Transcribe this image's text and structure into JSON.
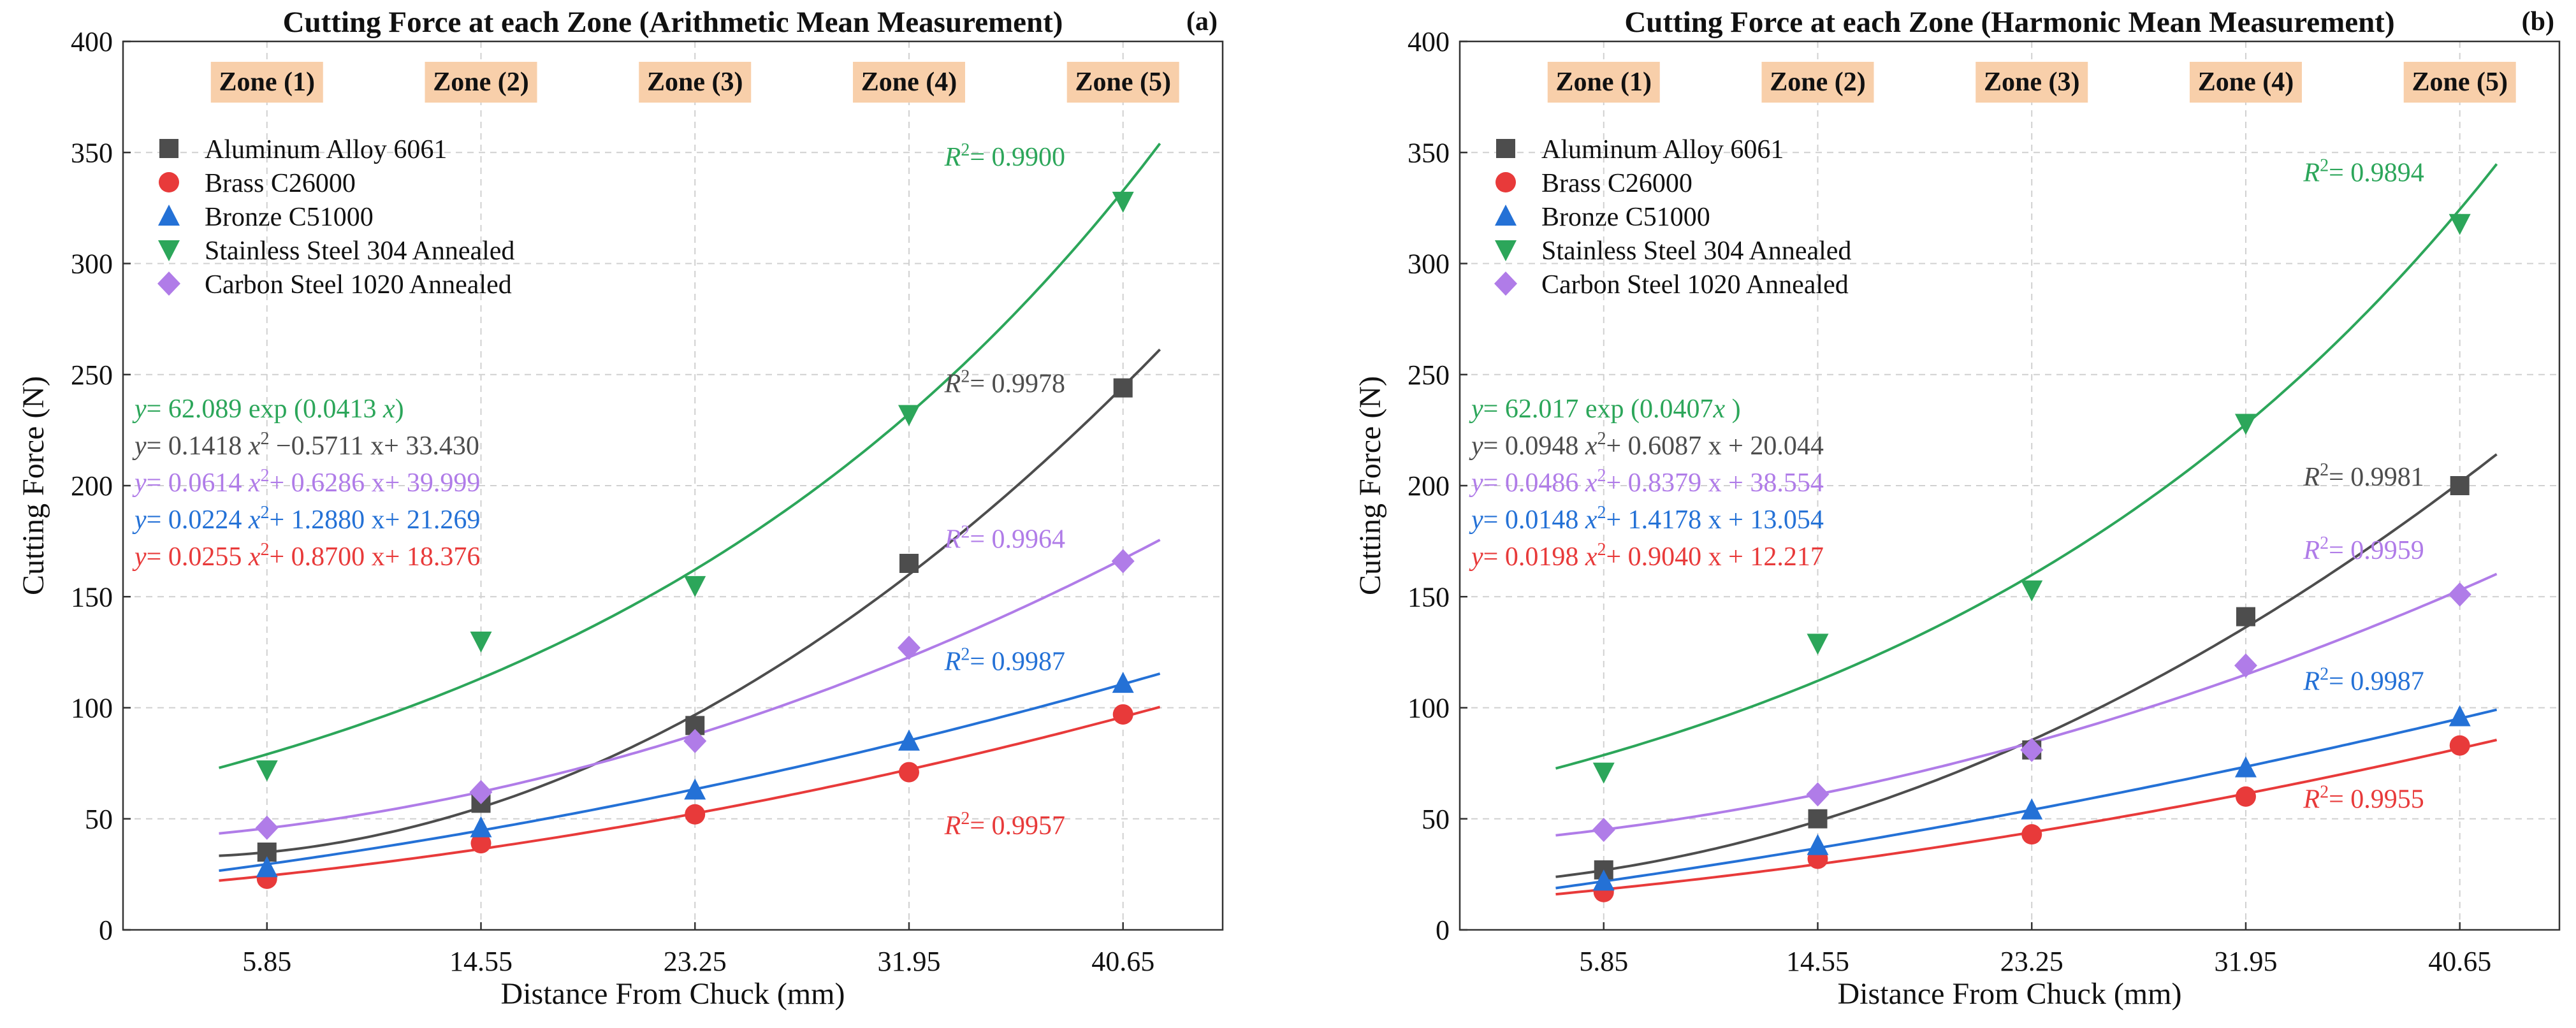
{
  "chart_data": [
    {
      "type": "scatter",
      "panel_label": "(a)",
      "title": "Cutting Force at each Zone (Arithmetic Mean Measurement)",
      "xlabel": "Distance From Chuck (mm)",
      "ylabel": "Cutting Force (N)",
      "x": [
        5.85,
        14.55,
        23.25,
        31.95,
        40.65
      ],
      "xticks": [
        "5.85",
        "14.55",
        "23.25",
        "31.95",
        "40.65"
      ],
      "xlim": [
        0,
        44.7
      ],
      "ylim": [
        0,
        400
      ],
      "yticks": [
        0,
        50,
        100,
        150,
        200,
        250,
        300,
        350,
        400
      ],
      "grid": true,
      "legend_position": "top-left",
      "zones": [
        "Zone (1)",
        "Zone (2)",
        "Zone (3)",
        "Zone (4)",
        "Zone (5)"
      ],
      "series": [
        {
          "name": "Aluminum Alloy 6061",
          "color": "#4d4d4d",
          "marker": "square",
          "values": [
            35,
            57,
            92,
            165,
            244
          ],
          "fit": {
            "kind": "poly2",
            "a": 0.1418,
            "b": -0.5711,
            "c": 33.43
          },
          "equation": {
            "prefix": "= 0.1418 ",
            "x2": "x",
            "sup": "2",
            "rest": " −0.5711  x+ 33.430"
          },
          "r2": "= 0.9978"
        },
        {
          "name": "Brass C26000",
          "color": "#e83a3a",
          "marker": "circle",
          "values": [
            23,
            39,
            52,
            71,
            97
          ],
          "fit": {
            "kind": "poly2",
            "a": 0.0255,
            "b": 0.87,
            "c": 18.376
          },
          "equation": {
            "prefix": "= 0.0255 ",
            "x2": "x",
            "sup": "2",
            "rest": "+ 0.8700  x+ 18.376"
          },
          "r2": "= 0.9957"
        },
        {
          "name": "Bronze C51000",
          "color": "#2471d6",
          "marker": "triangle-up",
          "values": [
            28,
            46,
            63,
            85,
            111
          ],
          "fit": {
            "kind": "poly2",
            "a": 0.0224,
            "b": 1.288,
            "c": 21.269
          },
          "equation": {
            "prefix": "= 0.0224 ",
            "x2": "x",
            "sup": "2",
            "rest": "+ 1.2880  x+ 21.269"
          },
          "r2": "= 0.9987"
        },
        {
          "name": "Stainless Steel 304 Annealed",
          "color": "#2ca65a",
          "marker": "triangle-down",
          "values": [
            72,
            130,
            155,
            232,
            328
          ],
          "fit": {
            "kind": "exp",
            "a": 62.089,
            "b": 0.0413
          },
          "equation": {
            "prefix": "= 62.089 exp (0.0413 ",
            "x2": "x",
            "sup": "",
            "rest": ")"
          },
          "r2": "= 0.9900"
        },
        {
          "name": "Carbon Steel 1020 Annealed",
          "color": "#b07ce8",
          "marker": "diamond",
          "values": [
            46,
            62,
            85,
            127,
            166
          ],
          "fit": {
            "kind": "poly2",
            "a": 0.0614,
            "b": 0.6286,
            "c": 39.999
          },
          "equation": {
            "prefix": "= 0.0614  ",
            "x2": "x",
            "sup": "2",
            "rest": "+ 0.6286  x+ 39.999"
          },
          "r2": "= 0.9964"
        }
      ]
    },
    {
      "type": "scatter",
      "panel_label": "(b)",
      "title": "Cutting Force at each Zone (Harmonic Mean Measurement)",
      "xlabel": "Distance From Chuck (mm)",
      "ylabel": "Cutting Force (N)",
      "x": [
        5.85,
        14.55,
        23.25,
        31.95,
        40.65
      ],
      "xticks": [
        "5.85",
        "14.55",
        "23.25",
        "31.95",
        "40.65"
      ],
      "xlim": [
        0,
        44.7
      ],
      "ylim": [
        0,
        400
      ],
      "yticks": [
        0,
        50,
        100,
        150,
        200,
        250,
        300,
        350,
        400
      ],
      "grid": true,
      "legend_position": "top-left",
      "zones": [
        "Zone (1)",
        "Zone (2)",
        "Zone (3)",
        "Zone (4)",
        "Zone (5)"
      ],
      "series": [
        {
          "name": "Aluminum Alloy 6061",
          "color": "#4d4d4d",
          "marker": "square",
          "values": [
            27,
            50,
            81,
            141,
            200
          ],
          "fit": {
            "kind": "poly2",
            "a": 0.0948,
            "b": 0.6087,
            "c": 20.044
          },
          "equation": {
            "prefix": "= 0.0948  ",
            "x2": "x",
            "sup": "2",
            "rest": "+ 0.6087 x + 20.044"
          },
          "r2": "= 0.9981"
        },
        {
          "name": "Brass C26000",
          "color": "#e83a3a",
          "marker": "circle",
          "values": [
            17,
            32,
            43,
            60,
            83
          ],
          "fit": {
            "kind": "poly2",
            "a": 0.0198,
            "b": 0.904,
            "c": 12.217
          },
          "equation": {
            "prefix": "= 0.0198 ",
            "x2": "x",
            "sup": "2",
            "rest": "+ 0.9040 x + 12.217"
          },
          "r2": "= 0.9955"
        },
        {
          "name": "Bronze C51000",
          "color": "#2471d6",
          "marker": "triangle-up",
          "values": [
            22,
            38,
            54,
            73,
            96
          ],
          "fit": {
            "kind": "poly2",
            "a": 0.0148,
            "b": 1.4178,
            "c": 13.054
          },
          "equation": {
            "prefix": "= 0.0148 ",
            "x2": "x",
            "sup": "2",
            "rest": "+ 1.4178 x + 13.054"
          },
          "r2": "= 0.9987"
        },
        {
          "name": "Stainless Steel 304 Annealed",
          "color": "#2ca65a",
          "marker": "triangle-down",
          "values": [
            71,
            129,
            153,
            228,
            318
          ],
          "fit": {
            "kind": "exp",
            "a": 62.017,
            "b": 0.0407
          },
          "equation": {
            "prefix": "= 62.017 exp (0.0407",
            "x2": "x",
            "sup": "",
            "rest": " )"
          },
          "r2": "= 0.9894"
        },
        {
          "name": "Carbon Steel 1020 Annealed",
          "color": "#b07ce8",
          "marker": "diamond",
          "values": [
            45,
            61,
            81,
            119,
            151
          ],
          "fit": {
            "kind": "poly2",
            "a": 0.0486,
            "b": 0.8379,
            "c": 38.554
          },
          "equation": {
            "prefix": "= 0.0486 ",
            "x2": "x",
            "sup": "2",
            "rest": "+ 0.8379 x + 38.554"
          },
          "r2": "= 0.9959"
        }
      ]
    }
  ]
}
